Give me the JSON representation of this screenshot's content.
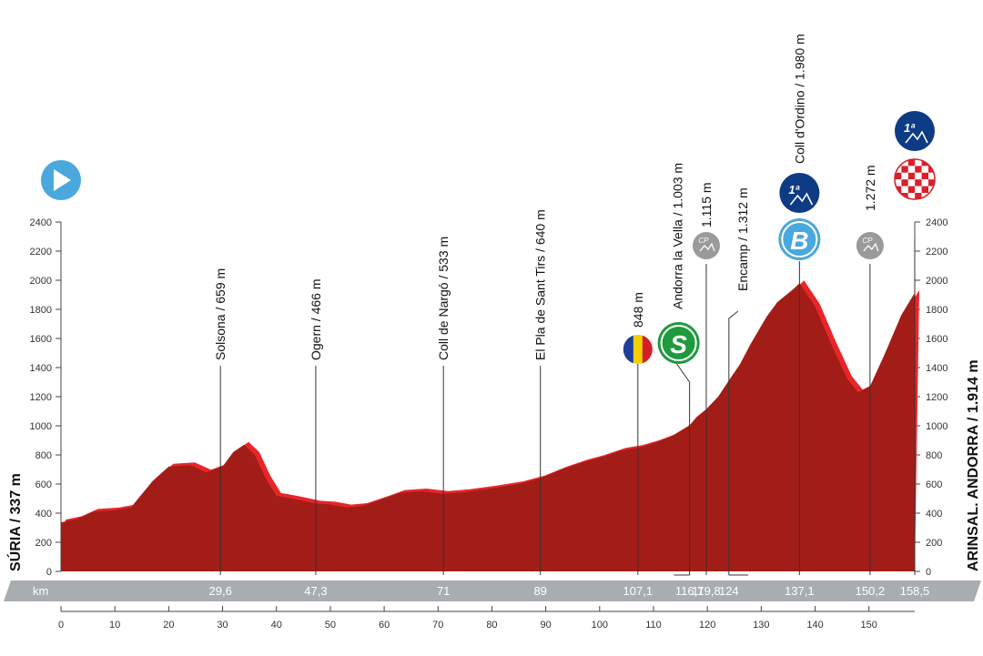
{
  "chart_data": {
    "type": "area",
    "xlabel": "km",
    "xlim": [
      0,
      158.5
    ],
    "ylim": [
      0,
      2400
    ],
    "x_ticks": [
      0,
      10,
      20,
      30,
      40,
      50,
      60,
      70,
      80,
      90,
      100,
      110,
      120,
      130,
      140,
      150
    ],
    "y_ticks": [
      0,
      200,
      400,
      600,
      800,
      1000,
      1200,
      1400,
      1600,
      1800,
      2000,
      2200,
      2400
    ],
    "start_label": "SÚRIA / 337 m",
    "finish_label": "ARINSAL. ANDORRA / 1.914 m",
    "profile": {
      "x": [
        0,
        3,
        6,
        10,
        13,
        17,
        20,
        24,
        27,
        30,
        32,
        34,
        36,
        38,
        40,
        43,
        47.3,
        50,
        53,
        56,
        60,
        63,
        67,
        71,
        75,
        80,
        85,
        89,
        93,
        97,
        100,
        104,
        107.1,
        110,
        113,
        116.7,
        118,
        119.8,
        122,
        124,
        126,
        128,
        131,
        133,
        136,
        137.1,
        140,
        143,
        146,
        148,
        150.2,
        153,
        156,
        158.5
      ],
      "y": [
        337,
        360,
        410,
        420,
        440,
        620,
        720,
        730,
        680,
        720,
        820,
        870,
        800,
        640,
        520,
        500,
        466,
        460,
        440,
        450,
        500,
        540,
        550,
        533,
        545,
        570,
        600,
        640,
        700,
        750,
        780,
        830,
        848,
        880,
        920,
        1003,
        1060,
        1115,
        1200,
        1312,
        1420,
        1560,
        1750,
        1850,
        1940,
        1980,
        1820,
        1560,
        1320,
        1230,
        1272,
        1500,
        1760,
        1914
      ]
    },
    "points": [
      {
        "km": "29,6",
        "x": 29.6,
        "y": 659,
        "label": "Solsona / 659  m"
      },
      {
        "km": "47,3",
        "x": 47.3,
        "y": 466,
        "label": "Ogern / 466 m"
      },
      {
        "km": "71",
        "x": 71,
        "y": 533,
        "label": "Coll de Nargó / 533 m"
      },
      {
        "km": "89",
        "x": 89,
        "y": 640,
        "label": "El Pla de Sant Tirs / 640 m"
      },
      {
        "km": "107,1",
        "x": 107.1,
        "y": 848,
        "label": "848 m"
      },
      {
        "km": "116,7",
        "x": 116.7,
        "y": 1003,
        "label": "Andorra la Vella / 1.003 m"
      },
      {
        "km": "119,8",
        "x": 119.8,
        "y": 1115,
        "label": "1.115 m"
      },
      {
        "km": "124",
        "x": 124,
        "y": 1312,
        "label": "Encamp / 1.312 m"
      },
      {
        "km": "137,1",
        "x": 137.1,
        "y": 1980,
        "label": "Coll d'Ordino / 1.980 m"
      },
      {
        "km": "150,2",
        "x": 150.2,
        "y": 1272,
        "label": "1.272 m"
      },
      {
        "km": "158,5",
        "x": 158.5,
        "y": 1914,
        "label": ""
      }
    ],
    "markers": [
      {
        "type": "start",
        "x": 0
      },
      {
        "type": "flag-andorra",
        "x": 107.1
      },
      {
        "type": "sprint",
        "text": "S",
        "x": 116.7
      },
      {
        "type": "checkpoint",
        "text": "CP",
        "x": 119.8
      },
      {
        "type": "climb",
        "text": "1ª",
        "x": 137.1
      },
      {
        "type": "bonus",
        "text": "B",
        "x": 137.1
      },
      {
        "type": "checkpoint",
        "text": "CP",
        "x": 150.2
      },
      {
        "type": "climb",
        "text": "1ª",
        "x": 158.5
      },
      {
        "type": "finish",
        "x": 158.5
      }
    ],
    "colors": {
      "profile": "#a31d18",
      "gradient_band": "#e8262a",
      "km_bar": "#a8adb0",
      "sprint": "#1f9a3e",
      "climb": "#0d3b84",
      "blue": "#4aa8dc",
      "cp": "#9a9a9a"
    }
  }
}
